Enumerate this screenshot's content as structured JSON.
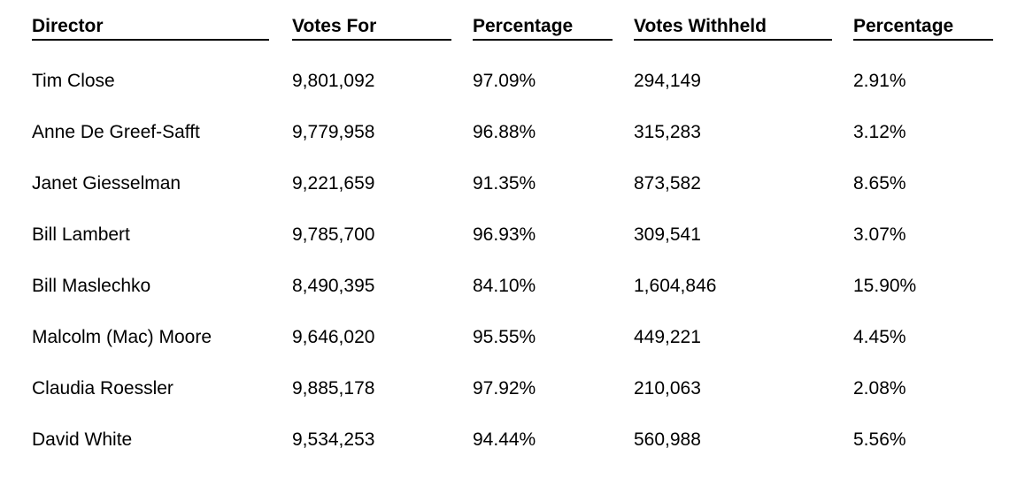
{
  "headers": [
    "Director",
    "Votes For",
    "Percentage",
    "Votes Withheld",
    "Percentage"
  ],
  "rows": [
    [
      "Tim Close",
      "9,801,092",
      "97.09%",
      "294,149",
      "2.91%"
    ],
    [
      "Anne De Greef-Safft",
      "9,779,958",
      "96.88%",
      "315,283",
      "3.12%"
    ],
    [
      "Janet Giesselman",
      "9,221,659",
      "91.35%",
      "873,582",
      "8.65%"
    ],
    [
      "Bill Lambert",
      "9,785,700",
      "96.93%",
      "309,541",
      "3.07%"
    ],
    [
      "Bill Maslechko",
      "8,490,395",
      "84.10%",
      "1,604,846",
      "15.90%"
    ],
    [
      "Malcolm (Mac) Moore",
      "9,646,020",
      "95.55%",
      "449,221",
      "4.45%"
    ],
    [
      "Claudia Roessler",
      "9,885,178",
      "97.92%",
      "210,063",
      "2.08%"
    ],
    [
      "David White",
      "9,534,253",
      "94.44%",
      "560,988",
      "5.56%"
    ]
  ]
}
